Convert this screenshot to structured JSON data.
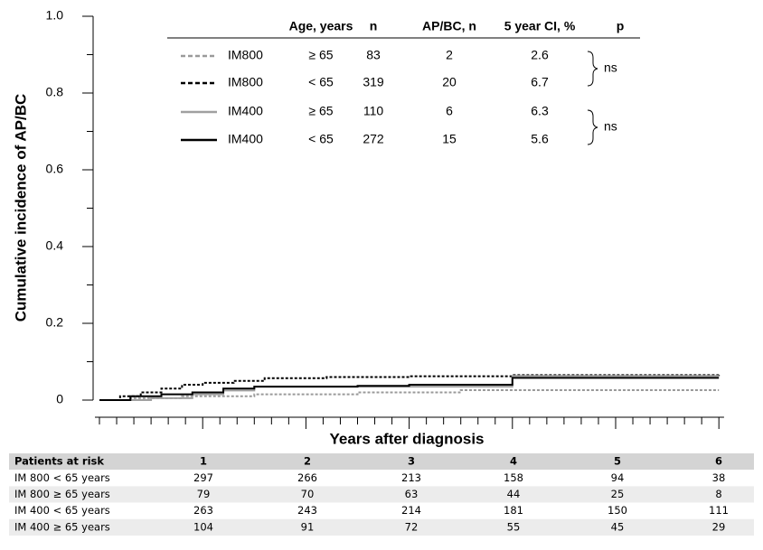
{
  "chart_data": {
    "type": "step",
    "y_label": "Cumulative incidence of AP/BC",
    "x_label": "Years after diagnosis",
    "xlim": [
      0,
      6.05
    ],
    "xticks": [
      1,
      2,
      3,
      4,
      5,
      6
    ],
    "ylim": [
      0,
      1
    ],
    "yticks": [
      0,
      0.2,
      0.4,
      0.6,
      0.8,
      {
        "value": 1,
        "label": "1.0"
      }
    ],
    "legend_header": [
      "Age, years",
      "n",
      "AP/BC, n",
      "5 year CI, %",
      "p"
    ],
    "p_values": [
      "ns",
      "ns"
    ],
    "series": [
      {
        "name": "IM800",
        "age": "≥ 65",
        "n": 83,
        "events": 2,
        "ci5": 2.6,
        "color": "#9a9a9a",
        "dashed": true,
        "x": [
          0,
          0.3,
          0.8,
          1.5,
          2.5,
          3.5,
          6.0
        ],
        "values": [
          0,
          0.005,
          0.01,
          0.015,
          0.02,
          0.026,
          0.026
        ]
      },
      {
        "name": "IM800",
        "age": "< 65",
        "n": 319,
        "events": 20,
        "ci5": 6.7,
        "color": "#000000",
        "dashed": true,
        "x": [
          0,
          0.2,
          0.4,
          0.6,
          0.8,
          1.0,
          1.3,
          1.6,
          2.2,
          3.0,
          4.0,
          6.0
        ],
        "values": [
          0,
          0.01,
          0.02,
          0.03,
          0.04,
          0.045,
          0.05,
          0.057,
          0.06,
          0.062,
          0.065,
          0.067
        ]
      },
      {
        "name": "IM400",
        "age": "≥ 65",
        "n": 110,
        "events": 6,
        "ci5": 6.3,
        "color": "#a0a0a0",
        "dashed": false,
        "x": [
          0,
          0.5,
          0.9,
          1.2,
          1.5,
          4.0,
          6.0
        ],
        "values": [
          0,
          0.005,
          0.015,
          0.025,
          0.035,
          0.063,
          0.063
        ]
      },
      {
        "name": "IM400",
        "age": "< 65",
        "n": 272,
        "events": 15,
        "ci5": 5.6,
        "color": "#000000",
        "dashed": false,
        "x": [
          0,
          0.3,
          0.6,
          0.9,
          1.2,
          1.5,
          2.5,
          3.0,
          4.0,
          6.0
        ],
        "values": [
          0,
          0.01,
          0.015,
          0.02,
          0.03,
          0.035,
          0.037,
          0.04,
          0.058,
          0.058
        ]
      }
    ]
  },
  "risk_table": {
    "header": [
      "Patients at risk",
      1,
      2,
      3,
      4,
      5,
      6
    ],
    "rows": [
      [
        "IM 800 < 65 years",
        297,
        266,
        213,
        158,
        94,
        38
      ],
      [
        "IM 800 ≥ 65 years",
        79,
        70,
        63,
        44,
        25,
        8
      ],
      [
        "IM 400 < 65 years",
        263,
        243,
        214,
        181,
        150,
        111
      ],
      [
        "IM 400 ≥ 65 years",
        104,
        91,
        72,
        55,
        45,
        29
      ]
    ]
  }
}
